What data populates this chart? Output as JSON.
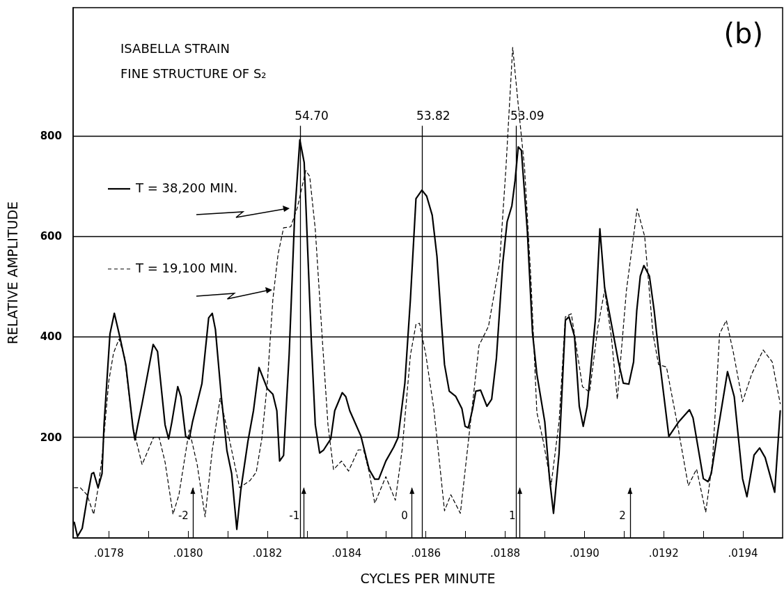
{
  "chart_data": {
    "type": "line",
    "title": "ISABELLA STRAIN",
    "subtitle": "FINE STRUCTURE OF S₂",
    "xlabel": "CYCLES PER MINUTE",
    "ylabel": "RELATIVE AMPLITUDE",
    "xlim": [
      0.01771,
      0.0195
    ],
    "ylim": [
      0,
      1055
    ],
    "xticks": [
      {
        "value": 0.0178,
        "label": ".0178"
      },
      {
        "value": 0.0179,
        "label": null
      },
      {
        "value": 0.018,
        "label": ".0180"
      },
      {
        "value": 0.0181,
        "label": null
      },
      {
        "value": 0.0182,
        "label": ".0182"
      },
      {
        "value": 0.0183,
        "label": null
      },
      {
        "value": 0.0184,
        "label": ".0184"
      },
      {
        "value": 0.0185,
        "label": null
      },
      {
        "value": 0.0186,
        "label": ".0186"
      },
      {
        "value": 0.0187,
        "label": null
      },
      {
        "value": 0.0188,
        "label": ".0188"
      },
      {
        "value": 0.0189,
        "label": null
      },
      {
        "value": 0.019,
        "label": ".0190"
      },
      {
        "value": 0.0191,
        "label": null
      },
      {
        "value": 0.0192,
        "label": ".0192"
      },
      {
        "value": 0.0193,
        "label": null
      },
      {
        "value": 0.0194,
        "label": ".0194"
      }
    ],
    "yticks": [
      200,
      400,
      600,
      800
    ],
    "grid": "y",
    "legend": "top left",
    "marker": "none",
    "series": [
      {
        "name": "T = 38,200 MIN.",
        "color": "#000000",
        "line_style": "solid",
        "x": [
          0.017713,
          0.017721,
          0.017733,
          0.017745,
          0.017757,
          0.017762,
          0.017773,
          0.017783,
          0.017788,
          0.017803,
          0.017814,
          0.017829,
          0.017843,
          0.017861,
          0.017866,
          0.017872,
          0.017884,
          0.017912,
          0.017923,
          0.017942,
          0.017951,
          0.017959,
          0.017974,
          0.017982,
          0.017994,
          0.018003,
          0.018011,
          0.018035,
          0.018052,
          0.018061,
          0.018069,
          0.018084,
          0.018098,
          0.01811,
          0.018123,
          0.018133,
          0.018151,
          0.018165,
          0.018179,
          0.0182,
          0.018214,
          0.018224,
          0.018231,
          0.018241,
          0.018255,
          0.018269,
          0.018282,
          0.018293,
          0.018311,
          0.018321,
          0.018332,
          0.018342,
          0.01836,
          0.01837,
          0.018389,
          0.018398,
          0.018408,
          0.018436,
          0.018457,
          0.018471,
          0.018481,
          0.018499,
          0.018519,
          0.01853,
          0.018547,
          0.018561,
          0.018575,
          0.01859,
          0.018602,
          0.018616,
          0.018628,
          0.01864,
          0.018647,
          0.018659,
          0.018675,
          0.018691,
          0.018699,
          0.018707,
          0.018718,
          0.018726,
          0.018738,
          0.018754,
          0.018766,
          0.018778,
          0.018794,
          0.018805,
          0.018817,
          0.018825,
          0.018833,
          0.018841,
          0.018856,
          0.018869,
          0.01888,
          0.0189,
          0.018912,
          0.018922,
          0.018936,
          0.018952,
          0.018961,
          0.018975,
          0.018987,
          0.018997,
          0.019007,
          0.019028,
          0.019039,
          0.019051,
          0.019086,
          0.019098,
          0.019112,
          0.019124,
          0.019132,
          0.019141,
          0.01915,
          0.019164,
          0.019176,
          0.01919,
          0.019213,
          0.019237,
          0.019265,
          0.019274,
          0.0193,
          0.019312,
          0.01932,
          0.019338,
          0.019361,
          0.019378,
          0.019399,
          0.01941,
          0.019428,
          0.019442,
          0.019456,
          0.01948,
          0.019494
        ],
        "values": [
          31,
          3,
          19,
          77,
          128,
          130,
          100,
          128,
          225,
          406,
          447,
          396,
          345,
          220,
          195,
          220,
          267,
          385,
          371,
          225,
          197,
          230,
          301,
          281,
          202,
          197,
          230,
          307,
          438,
          447,
          415,
          281,
          174,
          128,
          17,
          95,
          192,
          253,
          339,
          297,
          286,
          253,
          153,
          164,
          364,
          642,
          792,
          747,
          392,
          225,
          169,
          175,
          197,
          253,
          289,
          281,
          253,
          203,
          136,
          117,
          117,
          153,
          181,
          200,
          308,
          475,
          675,
          692,
          680,
          642,
          560,
          421,
          345,
          292,
          282,
          257,
          222,
          219,
          257,
          292,
          294,
          262,
          276,
          358,
          547,
          629,
          661,
          711,
          778,
          771,
          610,
          408,
          326,
          231,
          118,
          49,
          168,
          433,
          440,
          401,
          262,
          222,
          262,
          438,
          615,
          498,
          350,
          308,
          306,
          350,
          452,
          521,
          542,
          521,
          452,
          350,
          202,
          230,
          255,
          239,
          118,
          112,
          128,
          220,
          331,
          281,
          118,
          82,
          165,
          179,
          160,
          91,
          253
        ]
      },
      {
        "name": "T = 19,100 MIN.",
        "color": "#000000",
        "line_style": "dashed",
        "x": [
          0.017713,
          0.017728,
          0.017745,
          0.017762,
          0.017774,
          0.017783,
          0.0178,
          0.017812,
          0.017826,
          0.01784,
          0.017861,
          0.017884,
          0.017913,
          0.017927,
          0.017942,
          0.017962,
          0.017977,
          0.018003,
          0.018023,
          0.018043,
          0.018061,
          0.018081,
          0.018104,
          0.01813,
          0.018156,
          0.018172,
          0.018186,
          0.0182,
          0.018214,
          0.018227,
          0.018241,
          0.018259,
          0.018276,
          0.018297,
          0.018307,
          0.018321,
          0.018339,
          0.018353,
          0.018367,
          0.018387,
          0.018405,
          0.018429,
          0.018443,
          0.018457,
          0.018471,
          0.018499,
          0.018523,
          0.01854,
          0.018561,
          0.018575,
          0.018584,
          0.0186,
          0.01862,
          0.018632,
          0.018647,
          0.018663,
          0.018687,
          0.018711,
          0.018734,
          0.018758,
          0.018786,
          0.018802,
          0.018819,
          0.018833,
          0.018849,
          0.018865,
          0.01888,
          0.018896,
          0.018916,
          0.018936,
          0.018952,
          0.018967,
          0.018995,
          0.019013,
          0.019034,
          0.019051,
          0.019068,
          0.019083,
          0.019106,
          0.019133,
          0.019152,
          0.019173,
          0.019187,
          0.019207,
          0.019236,
          0.019262,
          0.019283,
          0.019306,
          0.019323,
          0.019341,
          0.019358,
          0.019376,
          0.019399,
          0.019422,
          0.019451,
          0.019474,
          0.019494
        ],
        "values": [
          100,
          100,
          86,
          47,
          104,
          160,
          312,
          368,
          396,
          359,
          220,
          146,
          200,
          200,
          151,
          47,
          86,
          215,
          146,
          42,
          174,
          278,
          197,
          100,
          114,
          131,
          197,
          308,
          475,
          564,
          617,
          619,
          658,
          731,
          719,
          614,
          392,
          225,
          136,
          153,
          133,
          175,
          175,
          131,
          69,
          122,
          75,
          175,
          364,
          425,
          427,
          364,
          257,
          168,
          54,
          86,
          49,
          219,
          383,
          421,
          547,
          736,
          976,
          862,
          736,
          515,
          250,
          193,
          106,
          231,
          440,
          446,
          301,
          290,
          420,
          493,
          400,
          276,
          493,
          655,
          600,
          406,
          345,
          340,
          220,
          104,
          137,
          51,
          151,
          406,
          433,
          368,
          271,
          326,
          374,
          350,
          267
        ]
      }
    ],
    "ref_lines": [
      {
        "axis": "x",
        "value": 0.018283
      },
      {
        "axis": "x",
        "value": 0.01859
      },
      {
        "axis": "x",
        "value": 0.018827
      },
      {
        "axis": "x",
        "value": 0.018012
      },
      {
        "axis": "x",
        "value": 0.018292
      },
      {
        "axis": "x",
        "value": 0.018565
      },
      {
        "axis": "x",
        "value": 0.018837
      },
      {
        "axis": "x",
        "value": 0.019115
      }
    ],
    "annotations": [
      "(b)",
      {
        "text": "54.70",
        "x": 0.018283,
        "y": 820
      },
      {
        "text": "53.82",
        "x": 0.01859,
        "y": 820
      },
      {
        "text": "53.09",
        "x": 0.018827,
        "y": 820
      },
      {
        "text": "-2",
        "x": 0.018012,
        "y": 100
      },
      {
        "text": "-1",
        "x": 0.018292,
        "y": 100
      },
      {
        "text": "0",
        "x": 0.018565,
        "y": 100
      },
      {
        "text": "1",
        "x": 0.018837,
        "y": 100
      },
      {
        "text": "2",
        "x": 0.019115,
        "y": 100
      }
    ]
  }
}
